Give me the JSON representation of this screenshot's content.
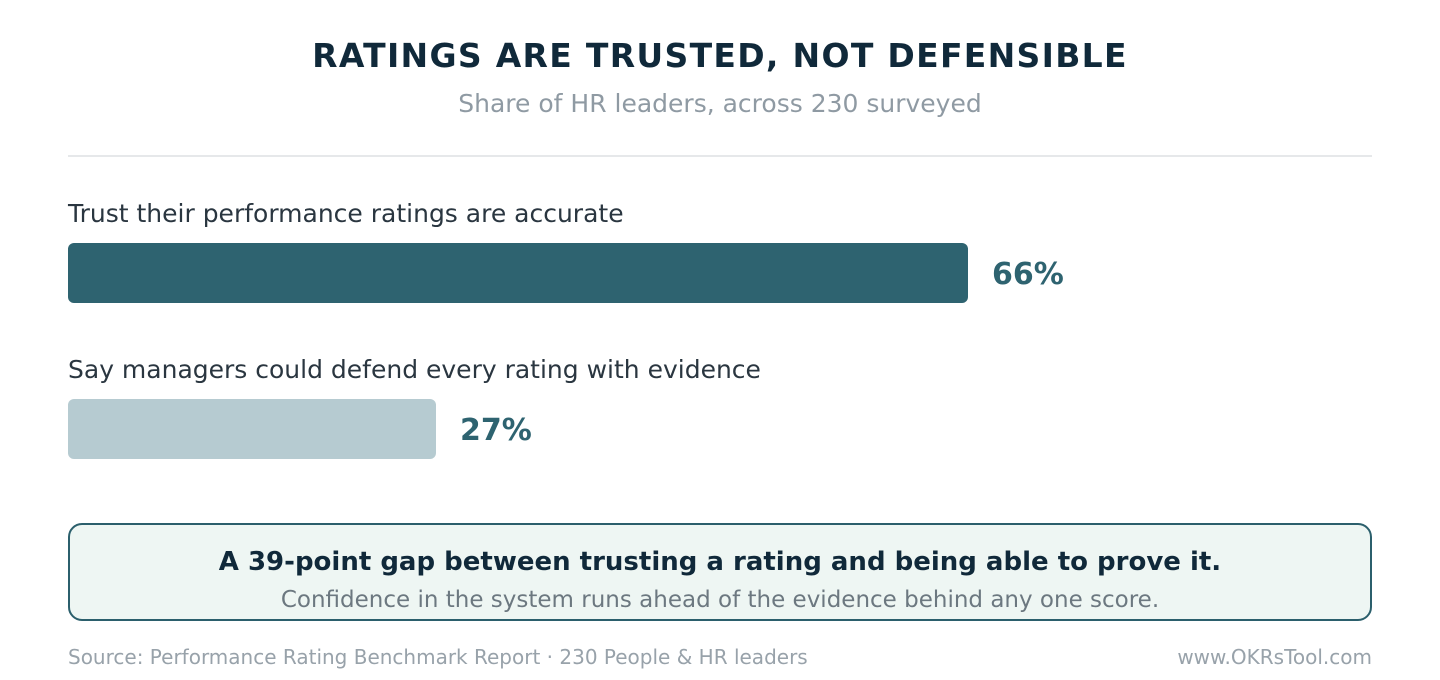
{
  "chart_data": {
    "type": "bar",
    "orientation": "horizontal",
    "title": "RATINGS ARE TRUSTED, NOT DEFENSIBLE",
    "subtitle": "Share of HR leaders, across 230 surveyed",
    "unit": "%",
    "xlim": [
      0,
      100
    ],
    "grid": false,
    "legend": "none",
    "categories": [
      "Trust their performance ratings are accurate",
      "Say managers could defend every rating with evidence"
    ],
    "values": [
      66,
      27
    ],
    "value_labels": [
      "66%",
      "27%"
    ],
    "colors": [
      "#2e6370",
      "#b6cbd1"
    ]
  },
  "callout": {
    "headline": "A 39-point gap between trusting a rating and being able to prove it.",
    "body": "Confidence in the system runs ahead of the evidence behind any one score."
  },
  "footer": {
    "source": "Source: Performance Rating Benchmark Report · 230 People & HR leaders",
    "site": "www.OKRsTool.com"
  }
}
